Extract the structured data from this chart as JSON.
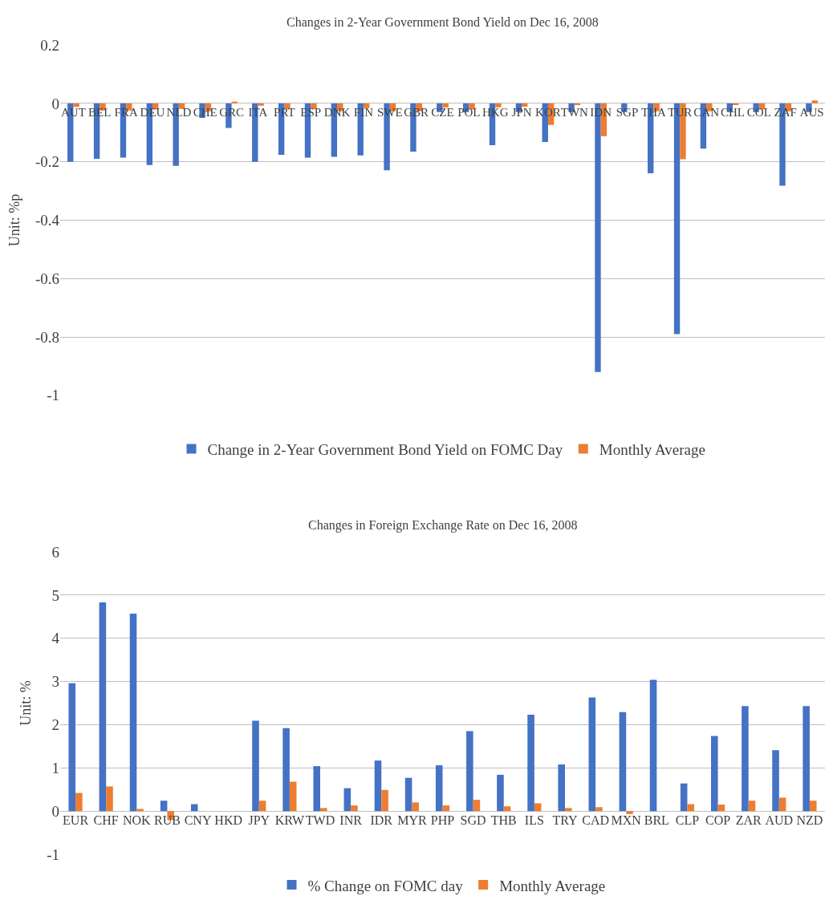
{
  "chart_data": [
    {
      "type": "bar",
      "title": "Changes in 2-Year Government Bond Yield on Dec 16, 2008",
      "ylabel": "Unit: %p",
      "categories": [
        "AUT",
        "BEL",
        "FRA",
        "DEU",
        "NLD",
        "CHE",
        "GRC",
        "ITA",
        "PRT",
        "ESP",
        "DNK",
        "FIN",
        "SWE",
        "GBR",
        "CZE",
        "POL",
        "HKG",
        "JPN",
        "KOR",
        "TWN",
        "IDN",
        "SGP",
        "THA",
        "TUR",
        "CAN",
        "CHL",
        "COL",
        "ZAF",
        "AUS"
      ],
      "series": [
        {
          "name": "Change in 2-Year Government Bond Yield on FOMC Day",
          "color": "#4472c4",
          "values": [
            -0.2,
            -0.19,
            -0.186,
            -0.211,
            -0.214,
            -0.05,
            -0.084,
            -0.2,
            -0.176,
            -0.186,
            -0.183,
            -0.178,
            -0.229,
            -0.165,
            -0.03,
            -0.03,
            -0.143,
            -0.03,
            -0.132,
            -0.03,
            -0.92,
            -0.03,
            -0.239,
            -0.79,
            -0.155,
            -0.03,
            -0.03,
            -0.282,
            -0.03
          ]
        },
        {
          "name": "Monthly Average",
          "color": "#ed7d31",
          "values": [
            -0.012,
            -0.024,
            -0.024,
            -0.02,
            -0.019,
            -0.027,
            0.006,
            -0.008,
            -0.019,
            -0.019,
            -0.027,
            -0.016,
            -0.027,
            -0.027,
            -0.014,
            -0.021,
            -0.013,
            -0.011,
            -0.074,
            -0.006,
            -0.112,
            null,
            -0.027,
            -0.191,
            -0.027,
            -0.006,
            -0.021,
            -0.027,
            0.01
          ]
        }
      ],
      "ylim": [
        -1,
        0.2
      ],
      "yticks": [
        -1,
        -0.8,
        -0.6,
        -0.4,
        -0.2,
        0,
        0.2
      ],
      "grid": "y",
      "legend": "bottom"
    },
    {
      "type": "bar",
      "title": "Changes in Foreign Exchange Rate on Dec 16, 2008",
      "ylabel": "Unit: %",
      "categories": [
        "EUR",
        "CHF",
        "NOK",
        "RUB",
        "CNY",
        "HKD",
        "JPY",
        "KRW",
        "TWD",
        "INR",
        "IDR",
        "MYR",
        "PHP",
        "SGD",
        "THB",
        "ILS",
        "TRY",
        "CAD",
        "MXN",
        "BRL",
        "CLP",
        "COP",
        "ZAR",
        "AUD",
        "NZD"
      ],
      "series": [
        {
          "name": "% Change on FOMC day",
          "color": "#4472c4",
          "values": [
            2.96,
            4.83,
            4.57,
            0.24,
            0.16,
            null,
            2.09,
            1.92,
            1.04,
            0.53,
            1.17,
            0.77,
            1.06,
            1.85,
            0.84,
            2.23,
            1.08,
            2.63,
            2.29,
            3.04,
            0.64,
            1.74,
            2.43,
            1.41,
            2.43
          ]
        },
        {
          "name": "Monthly Average",
          "color": "#ed7d31",
          "values": [
            0.42,
            0.57,
            0.05,
            -0.21,
            null,
            null,
            0.24,
            0.68,
            0.07,
            0.13,
            0.49,
            0.2,
            0.13,
            0.26,
            0.11,
            0.18,
            0.07,
            0.09,
            -0.07,
            null,
            0.16,
            0.15,
            0.24,
            0.31,
            0.24
          ]
        }
      ],
      "ylim": [
        -1,
        6
      ],
      "yticks": [
        -1,
        0,
        1,
        2,
        3,
        4,
        5,
        6
      ],
      "grid": "y",
      "legend": "bottom"
    }
  ]
}
